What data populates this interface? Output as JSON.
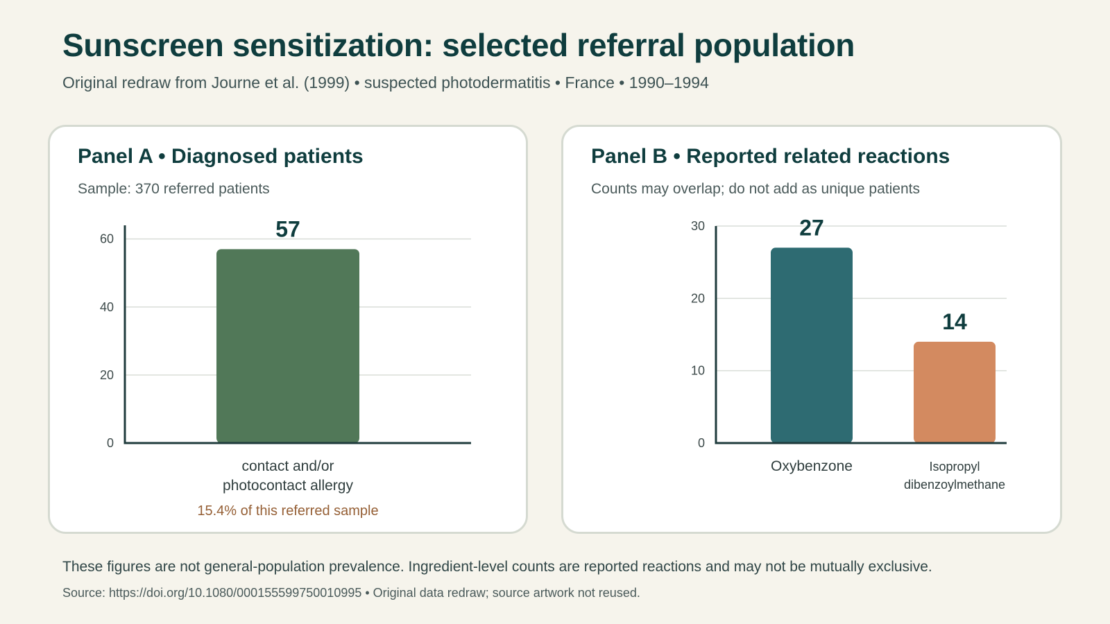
{
  "page": {
    "title": "Sunscreen sensitization: selected referral population",
    "subtitle": "Original redraw from Journe et al. (1999) • suspected photodermatitis • France • 1990–1994",
    "footer_note": "These figures are not general-population prevalence. Ingredient-level counts are reported reactions and may not be mutually exclusive.",
    "footer_source": "Source: https://doi.org/10.1080/000155599750010995 • Original data redraw; source artwork not reused."
  },
  "panels": [
    {
      "title": "Panel A • Diagnosed patients",
      "subtitle": "Sample: 370 referred patients",
      "note": "15.4% of this referred sample"
    },
    {
      "title": "Panel B • Reported related reactions",
      "subtitle": "Counts may overlap; do not add as unique patients"
    }
  ],
  "colors": {
    "panel_a_bar": "#517858",
    "panel_b_bars": [
      "#2e6b72",
      "#d38a60"
    ],
    "axis": "#1f3b3c",
    "grid": "#d9ddd8",
    "note": "#955f35",
    "value_label": "#0f3d3e"
  },
  "chart_data": [
    {
      "type": "bar",
      "title": "Panel A • Diagnosed patients",
      "categories": [
        [
          "contact and/or",
          "photocontact allergy"
        ]
      ],
      "values": [
        57
      ],
      "ylim": [
        0,
        64
      ],
      "yticks": [
        0,
        20,
        40,
        60
      ],
      "grid": true,
      "xlabel": "",
      "ylabel": ""
    },
    {
      "type": "bar",
      "title": "Panel B • Reported related reactions",
      "categories": [
        [
          "Oxybenzone"
        ],
        [
          "Isopropyl",
          "dibenzoylmethane"
        ]
      ],
      "values": [
        27,
        14
      ],
      "ylim": [
        0,
        30
      ],
      "yticks": [
        0,
        10,
        20,
        30
      ],
      "grid": true,
      "xlabel": "",
      "ylabel": ""
    }
  ]
}
